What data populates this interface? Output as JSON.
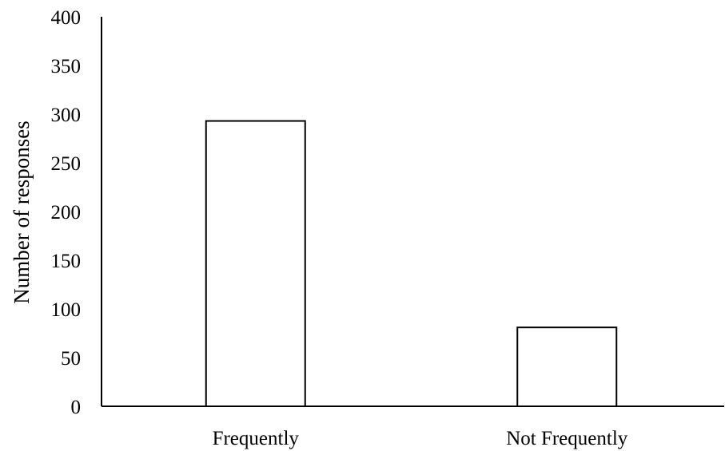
{
  "chart_data": {
    "type": "bar",
    "title": "",
    "xlabel": "",
    "ylabel": "Number of responses",
    "categories": [
      "Frequently",
      "Not Frequently"
    ],
    "values": [
      293,
      81
    ],
    "ylim": [
      0,
      400
    ],
    "yticks": [
      "0",
      "50",
      "100",
      "150",
      "200",
      "250",
      "300",
      "350",
      "400"
    ],
    "grid": false,
    "legend": "none",
    "colors": {
      "bar_fill": "#ffffff",
      "bar_stroke": "#000000",
      "axis": "#000000"
    }
  }
}
